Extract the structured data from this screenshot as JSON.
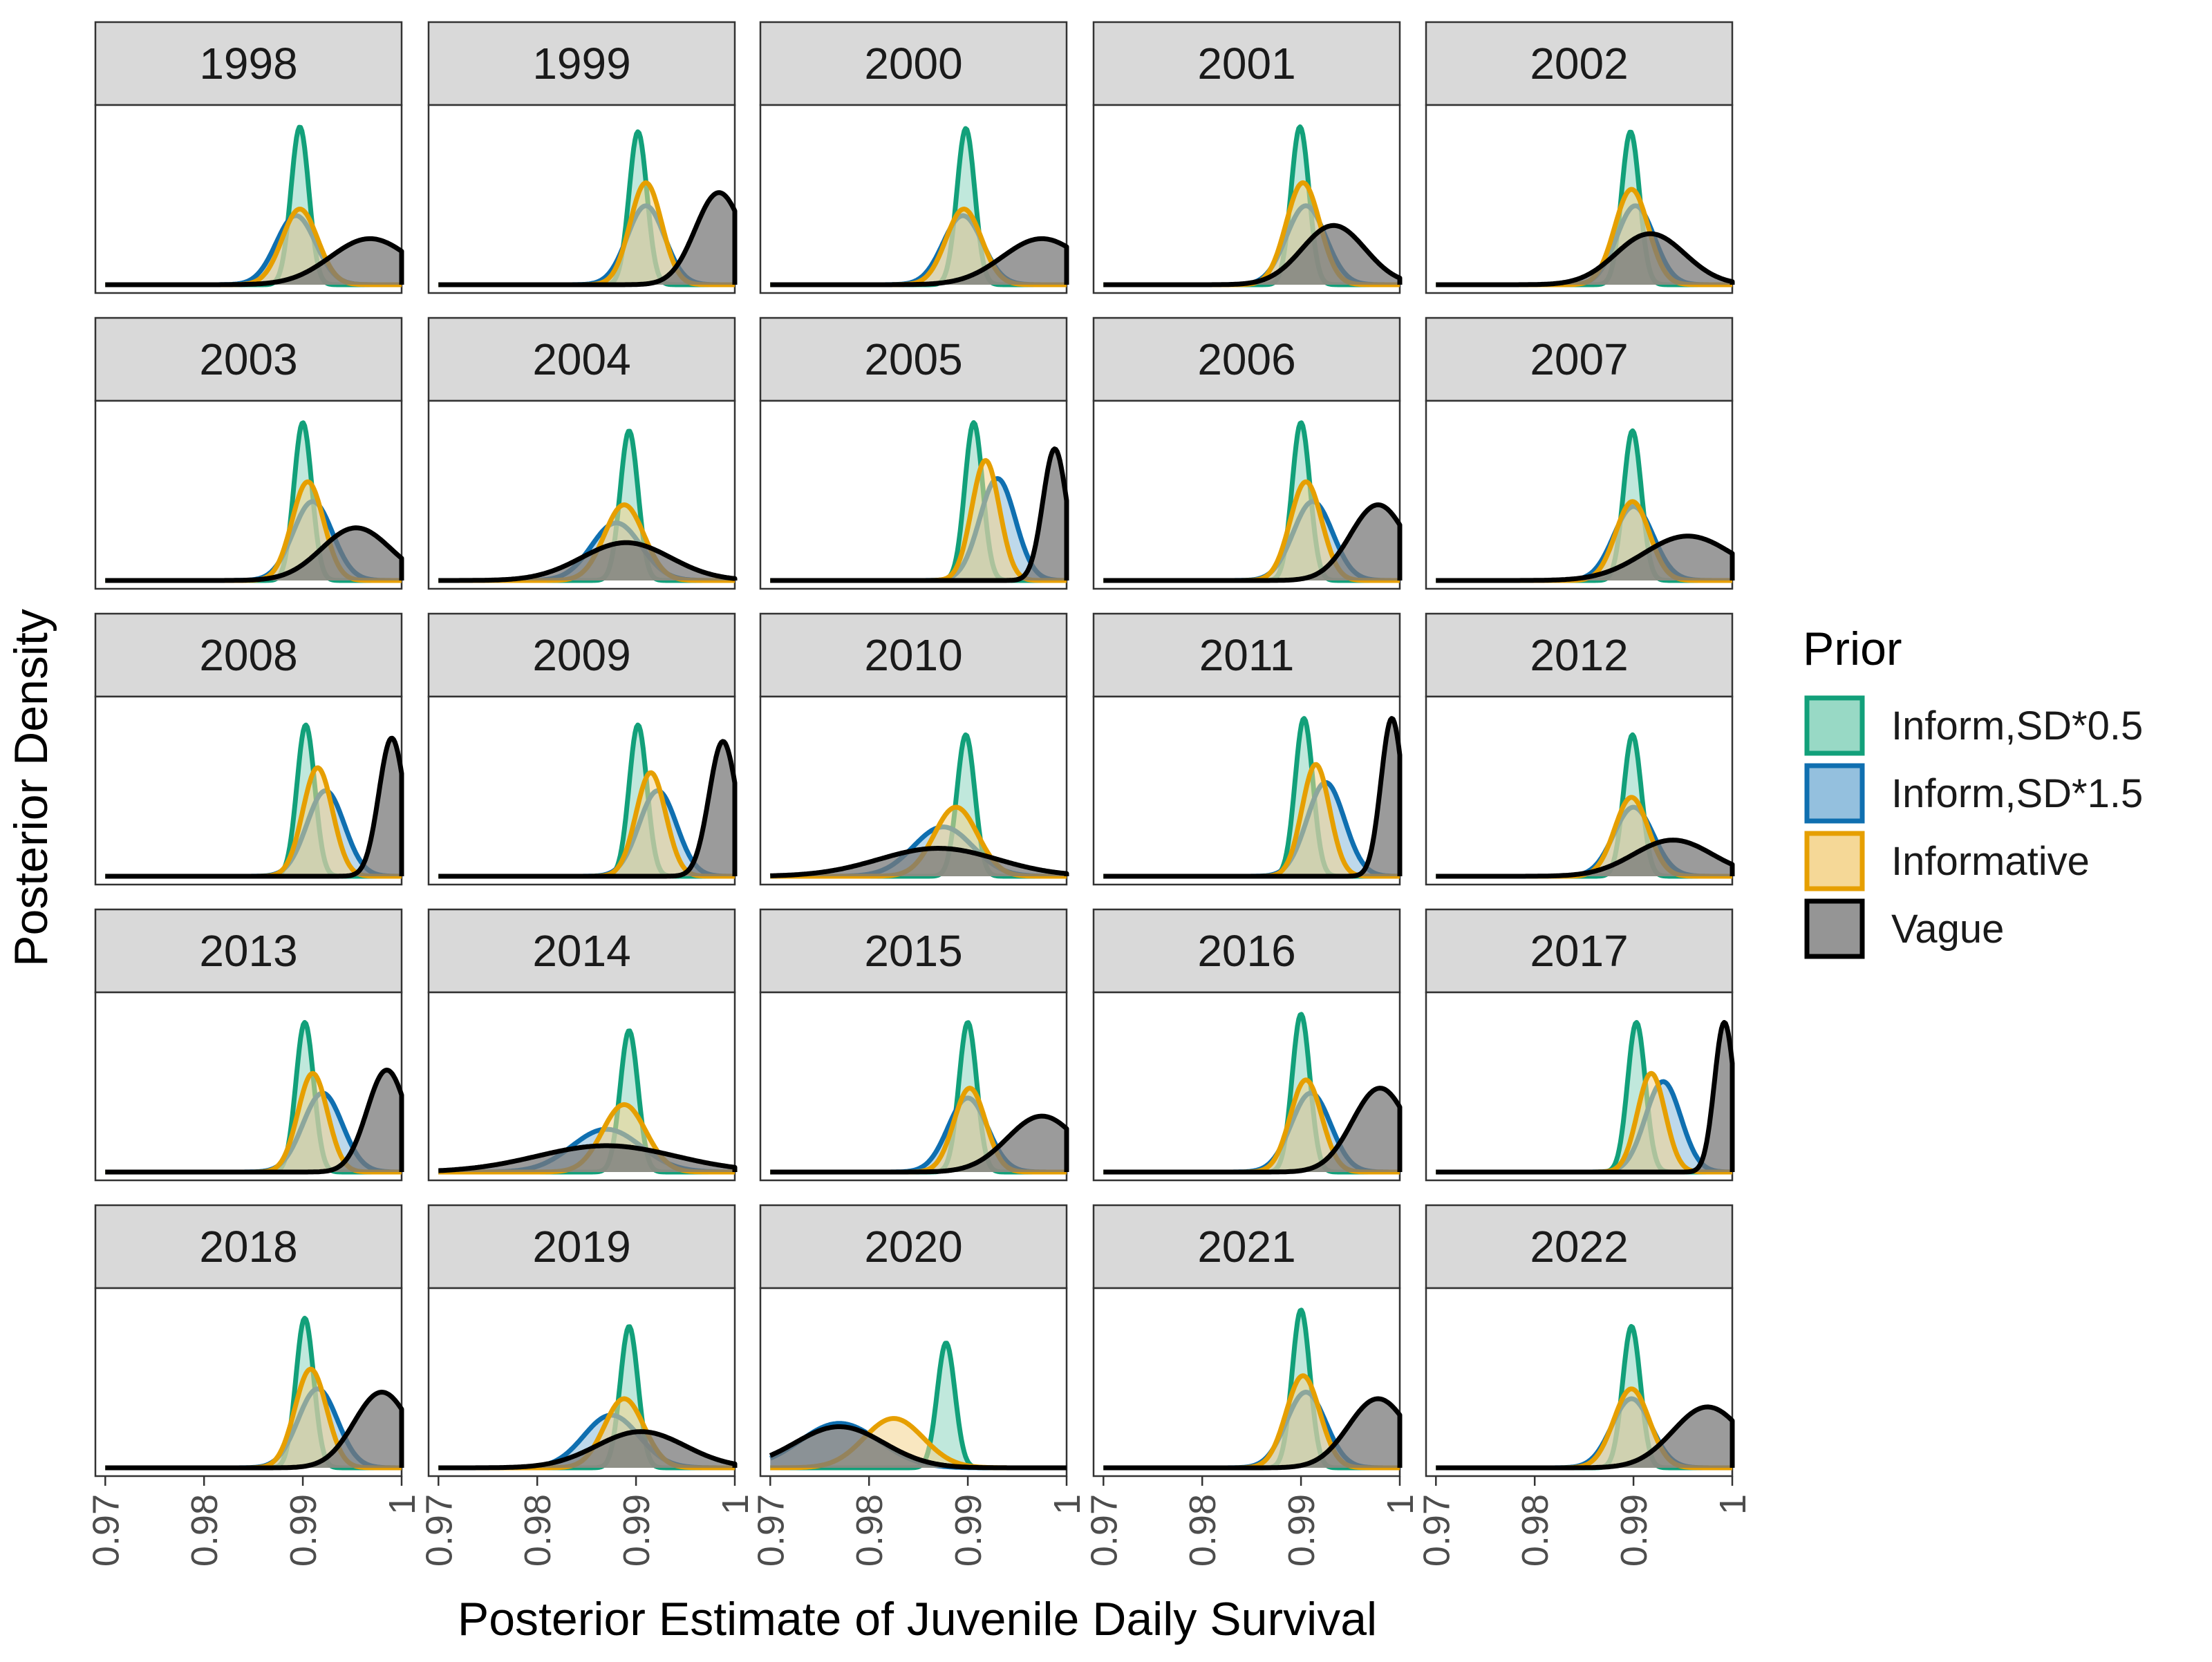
{
  "chart_data": {
    "type": "area",
    "kind": "faceted posterior density plot",
    "xlabel": "Posterior Estimate of Juvenile Daily Survival",
    "ylabel": "Posterior Density",
    "xlim": [
      0.969,
      1.0
    ],
    "x_ticks": [
      "0.97",
      "0.98",
      "0.99",
      "1"
    ],
    "x_tick_values": [
      0.97,
      0.98,
      0.99,
      1.0
    ],
    "grid": false,
    "legend": {
      "title": "Prior",
      "position": "right",
      "entries": [
        "Inform,SD*0.5",
        "Inform,SD*1.5",
        "Informative",
        "Vague"
      ]
    },
    "series": [
      {
        "name": "Inform,SD*0.5",
        "color": "#12A07A",
        "fill": "#8DD5BF"
      },
      {
        "name": "Inform,SD*1.5",
        "color": "#0F6FB0",
        "fill": "#88B9DA"
      },
      {
        "name": "Informative",
        "color": "#E69F00",
        "fill": "#F4D48C"
      },
      {
        "name": "Vague",
        "color": "#000000",
        "fill": "#7A7A7A"
      }
    ],
    "note_curves": "Each curve approximated by normal/skew components: mu = mode on x axis, sd, h = peak height relative to panel max; right-truncated at x = 1.",
    "facets": [
      {
        "year": "1998",
        "curves": {
          "Inform,SD*0.5": {
            "mu": 0.9897,
            "sd": 0.0009,
            "h": 0.96
          },
          "Inform,SD*1.5": {
            "mu": 0.9893,
            "sd": 0.002,
            "h": 0.42
          },
          "Informative": {
            "mu": 0.9897,
            "sd": 0.0018,
            "h": 0.46
          },
          "Vague": {
            "mu": 0.9968,
            "sd": 0.004,
            "h": 0.28
          }
        }
      },
      {
        "year": "1999",
        "curves": {
          "Inform,SD*0.5": {
            "mu": 0.9902,
            "sd": 0.0009,
            "h": 0.93
          },
          "Inform,SD*1.5": {
            "mu": 0.991,
            "sd": 0.0019,
            "h": 0.48
          },
          "Informative": {
            "mu": 0.991,
            "sd": 0.0016,
            "h": 0.62
          },
          "Vague": {
            "mu": 0.9984,
            "sd": 0.0024,
            "h": 0.56
          }
        }
      },
      {
        "year": "2000",
        "curves": {
          "Inform,SD*0.5": {
            "mu": 0.9898,
            "sd": 0.0009,
            "h": 0.95
          },
          "Inform,SD*1.5": {
            "mu": 0.9895,
            "sd": 0.002,
            "h": 0.42
          },
          "Informative": {
            "mu": 0.9896,
            "sd": 0.0018,
            "h": 0.46
          },
          "Vague": {
            "mu": 0.9975,
            "sd": 0.004,
            "h": 0.28
          }
        }
      },
      {
        "year": "2001",
        "curves": {
          "Inform,SD*0.5": {
            "mu": 0.9899,
            "sd": 0.0009,
            "h": 0.96
          },
          "Inform,SD*1.5": {
            "mu": 0.9905,
            "sd": 0.002,
            "h": 0.48
          },
          "Informative": {
            "mu": 0.9902,
            "sd": 0.0017,
            "h": 0.62
          },
          "Vague": {
            "mu": 0.9933,
            "sd": 0.0032,
            "h": 0.36
          }
        }
      },
      {
        "year": "2002",
        "curves": {
          "Inform,SD*0.5": {
            "mu": 0.9897,
            "sd": 0.0009,
            "h": 0.93
          },
          "Inform,SD*1.5": {
            "mu": 0.9902,
            "sd": 0.0019,
            "h": 0.48
          },
          "Informative": {
            "mu": 0.9898,
            "sd": 0.0017,
            "h": 0.58
          },
          "Vague": {
            "mu": 0.9917,
            "sd": 0.0035,
            "h": 0.31
          }
        }
      },
      {
        "year": "2003",
        "curves": {
          "Inform,SD*0.5": {
            "mu": 0.99,
            "sd": 0.0009,
            "h": 0.96
          },
          "Inform,SD*1.5": {
            "mu": 0.991,
            "sd": 0.002,
            "h": 0.48
          },
          "Informative": {
            "mu": 0.9905,
            "sd": 0.0016,
            "h": 0.6
          },
          "Vague": {
            "mu": 0.9954,
            "sd": 0.0035,
            "h": 0.32
          }
        }
      },
      {
        "year": "2004",
        "curves": {
          "Inform,SD*0.5": {
            "mu": 0.9893,
            "sd": 0.0009,
            "h": 0.91
          },
          "Inform,SD*1.5": {
            "mu": 0.988,
            "sd": 0.0025,
            "h": 0.35
          },
          "Informative": {
            "mu": 0.9888,
            "sd": 0.002,
            "h": 0.46
          },
          "Vague": {
            "mu": 0.989,
            "sd": 0.0045,
            "h": 0.23
          }
        }
      },
      {
        "year": "2005",
        "curves": {
          "Inform,SD*0.5": {
            "mu": 0.9906,
            "sd": 0.0009,
            "h": 0.96
          },
          "Inform,SD*1.5": {
            "mu": 0.993,
            "sd": 0.0018,
            "h": 0.62
          },
          "Informative": {
            "mu": 0.9918,
            "sd": 0.0014,
            "h": 0.73
          },
          "Vague": {
            "mu": 0.9988,
            "sd": 0.0012,
            "h": 0.8
          }
        }
      },
      {
        "year": "2006",
        "curves": {
          "Inform,SD*0.5": {
            "mu": 0.99,
            "sd": 0.0009,
            "h": 0.96
          },
          "Inform,SD*1.5": {
            "mu": 0.9912,
            "sd": 0.002,
            "h": 0.48
          },
          "Informative": {
            "mu": 0.9905,
            "sd": 0.0016,
            "h": 0.6
          },
          "Vague": {
            "mu": 0.9978,
            "sd": 0.0028,
            "h": 0.46
          }
        }
      },
      {
        "year": "2007",
        "curves": {
          "Inform,SD*0.5": {
            "mu": 0.9899,
            "sd": 0.0009,
            "h": 0.91
          },
          "Inform,SD*1.5": {
            "mu": 0.99,
            "sd": 0.002,
            "h": 0.45
          },
          "Informative": {
            "mu": 0.9899,
            "sd": 0.0017,
            "h": 0.48
          },
          "Vague": {
            "mu": 0.9955,
            "sd": 0.0045,
            "h": 0.27
          }
        }
      },
      {
        "year": "2008",
        "curves": {
          "Inform,SD*0.5": {
            "mu": 0.9903,
            "sd": 0.0009,
            "h": 0.92
          },
          "Inform,SD*1.5": {
            "mu": 0.9923,
            "sd": 0.0019,
            "h": 0.52
          },
          "Informative": {
            "mu": 0.9915,
            "sd": 0.0015,
            "h": 0.66
          },
          "Vague": {
            "mu": 0.999,
            "sd": 0.0013,
            "h": 0.84
          }
        }
      },
      {
        "year": "2009",
        "curves": {
          "Inform,SD*0.5": {
            "mu": 0.9902,
            "sd": 0.0009,
            "h": 0.92
          },
          "Inform,SD*1.5": {
            "mu": 0.9922,
            "sd": 0.0019,
            "h": 0.52
          },
          "Informative": {
            "mu": 0.9915,
            "sd": 0.0015,
            "h": 0.63
          },
          "Vague": {
            "mu": 0.9988,
            "sd": 0.0014,
            "h": 0.82
          }
        }
      },
      {
        "year": "2010",
        "curves": {
          "Inform,SD*0.5": {
            "mu": 0.9898,
            "sd": 0.0009,
            "h": 0.86
          },
          "Inform,SD*1.5": {
            "mu": 0.9875,
            "sd": 0.003,
            "h": 0.3
          },
          "Informative": {
            "mu": 0.9888,
            "sd": 0.0022,
            "h": 0.42
          },
          "Vague": {
            "mu": 0.987,
            "sd": 0.006,
            "h": 0.17
          }
        }
      },
      {
        "year": "2011",
        "curves": {
          "Inform,SD*0.5": {
            "mu": 0.9903,
            "sd": 0.0009,
            "h": 0.96
          },
          "Inform,SD*1.5": {
            "mu": 0.9925,
            "sd": 0.0019,
            "h": 0.57
          },
          "Informative": {
            "mu": 0.9915,
            "sd": 0.0014,
            "h": 0.68
          },
          "Vague": {
            "mu": 0.9992,
            "sd": 0.0011,
            "h": 0.96
          }
        }
      },
      {
        "year": "2012",
        "curves": {
          "Inform,SD*0.5": {
            "mu": 0.9899,
            "sd": 0.0009,
            "h": 0.86
          },
          "Inform,SD*1.5": {
            "mu": 0.99,
            "sd": 0.002,
            "h": 0.42
          },
          "Informative": {
            "mu": 0.9898,
            "sd": 0.0017,
            "h": 0.48
          },
          "Vague": {
            "mu": 0.994,
            "sd": 0.004,
            "h": 0.22
          }
        }
      },
      {
        "year": "2013",
        "curves": {
          "Inform,SD*0.5": {
            "mu": 0.9902,
            "sd": 0.0009,
            "h": 0.91
          },
          "Inform,SD*1.5": {
            "mu": 0.992,
            "sd": 0.002,
            "h": 0.48
          },
          "Informative": {
            "mu": 0.991,
            "sd": 0.0015,
            "h": 0.6
          },
          "Vague": {
            "mu": 0.9985,
            "sd": 0.002,
            "h": 0.62
          }
        }
      },
      {
        "year": "2014",
        "curves": {
          "Inform,SD*0.5": {
            "mu": 0.9893,
            "sd": 0.0009,
            "h": 0.86
          },
          "Inform,SD*1.5": {
            "mu": 0.987,
            "sd": 0.0035,
            "h": 0.26
          },
          "Informative": {
            "mu": 0.9888,
            "sd": 0.0022,
            "h": 0.41
          },
          "Vague": {
            "mu": 0.987,
            "sd": 0.007,
            "h": 0.16
          }
        }
      },
      {
        "year": "2015",
        "curves": {
          "Inform,SD*0.5": {
            "mu": 0.99,
            "sd": 0.0009,
            "h": 0.91
          },
          "Inform,SD*1.5": {
            "mu": 0.99,
            "sd": 0.002,
            "h": 0.45
          },
          "Informative": {
            "mu": 0.9902,
            "sd": 0.0016,
            "h": 0.51
          },
          "Vague": {
            "mu": 0.9975,
            "sd": 0.0035,
            "h": 0.34
          }
        }
      },
      {
        "year": "2016",
        "curves": {
          "Inform,SD*0.5": {
            "mu": 0.99,
            "sd": 0.0009,
            "h": 0.96
          },
          "Inform,SD*1.5": {
            "mu": 0.991,
            "sd": 0.002,
            "h": 0.48
          },
          "Informative": {
            "mu": 0.9905,
            "sd": 0.0016,
            "h": 0.56
          },
          "Vague": {
            "mu": 0.998,
            "sd": 0.0028,
            "h": 0.51
          }
        }
      },
      {
        "year": "2017",
        "curves": {
          "Inform,SD*0.5": {
            "mu": 0.9903,
            "sd": 0.0009,
            "h": 0.91
          },
          "Inform,SD*1.5": {
            "mu": 0.993,
            "sd": 0.0018,
            "h": 0.55
          },
          "Informative": {
            "mu": 0.9918,
            "sd": 0.0014,
            "h": 0.6
          },
          "Vague": {
            "mu": 0.9992,
            "sd": 0.001,
            "h": 0.91
          }
        }
      },
      {
        "year": "2018",
        "curves": {
          "Inform,SD*0.5": {
            "mu": 0.9902,
            "sd": 0.0009,
            "h": 0.91
          },
          "Inform,SD*1.5": {
            "mu": 0.9915,
            "sd": 0.002,
            "h": 0.48
          },
          "Informative": {
            "mu": 0.9908,
            "sd": 0.0016,
            "h": 0.6
          },
          "Vague": {
            "mu": 0.998,
            "sd": 0.0028,
            "h": 0.46
          }
        }
      },
      {
        "year": "2019",
        "curves": {
          "Inform,SD*0.5": {
            "mu": 0.9893,
            "sd": 0.0009,
            "h": 0.86
          },
          "Inform,SD*1.5": {
            "mu": 0.9875,
            "sd": 0.0028,
            "h": 0.32
          },
          "Informative": {
            "mu": 0.9888,
            "sd": 0.002,
            "h": 0.42
          },
          "Vague": {
            "mu": 0.9905,
            "sd": 0.0045,
            "h": 0.22
          }
        }
      },
      {
        "year": "2020",
        "curves": {
          "Inform,SD*0.5": {
            "mu": 0.9878,
            "sd": 0.0009,
            "h": 0.76
          },
          "Inform,SD*1.5": {
            "mu": 0.977,
            "sd": 0.004,
            "h": 0.27
          },
          "Informative": {
            "mu": 0.9825,
            "sd": 0.003,
            "h": 0.3
          },
          "Vague": {
            "mu": 0.977,
            "sd": 0.0045,
            "h": 0.25
          }
        }
      },
      {
        "year": "2021",
        "curves": {
          "Inform,SD*0.5": {
            "mu": 0.99,
            "sd": 0.0009,
            "h": 0.96
          },
          "Inform,SD*1.5": {
            "mu": 0.9905,
            "sd": 0.002,
            "h": 0.46
          },
          "Informative": {
            "mu": 0.9902,
            "sd": 0.0017,
            "h": 0.56
          },
          "Vague": {
            "mu": 0.9978,
            "sd": 0.003,
            "h": 0.42
          }
        }
      },
      {
        "year": "2022",
        "curves": {
          "Inform,SD*0.5": {
            "mu": 0.9898,
            "sd": 0.0009,
            "h": 0.86
          },
          "Inform,SD*1.5": {
            "mu": 0.9898,
            "sd": 0.002,
            "h": 0.42
          },
          "Informative": {
            "mu": 0.9898,
            "sd": 0.0018,
            "h": 0.48
          },
          "Vague": {
            "mu": 0.9975,
            "sd": 0.0035,
            "h": 0.37
          }
        }
      }
    ]
  }
}
